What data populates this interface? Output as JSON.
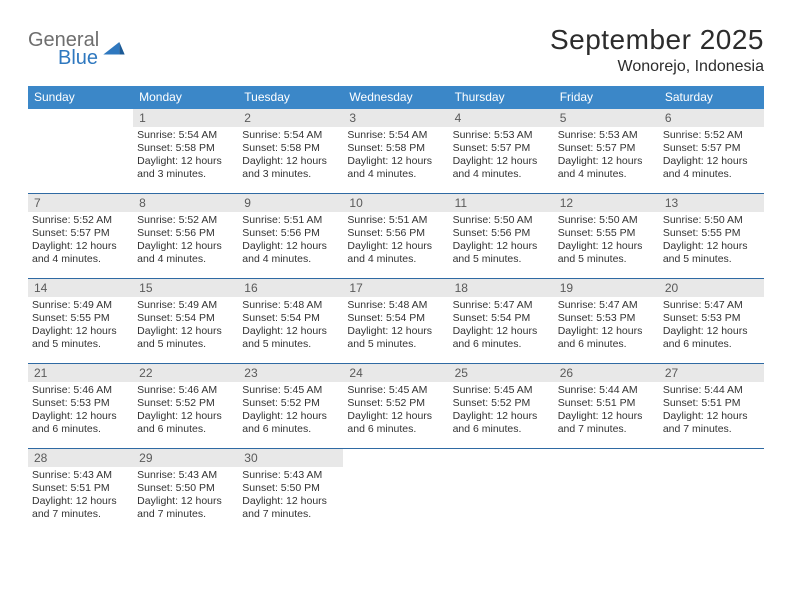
{
  "brand": {
    "part1": "General",
    "part2": "Blue"
  },
  "title": "September 2025",
  "location": "Wonorejo, Indonesia",
  "colors": {
    "header_bg": "#3b87c8",
    "week_divider": "#2f6aa3",
    "daynum_bg": "#e8e8e8",
    "text": "#262626",
    "logo_gray": "#6e6e6e",
    "logo_blue": "#2f78bf"
  },
  "daysOfWeek": [
    "Sunday",
    "Monday",
    "Tuesday",
    "Wednesday",
    "Thursday",
    "Friday",
    "Saturday"
  ],
  "startOffset": 1,
  "days": [
    {
      "n": 1,
      "sunrise": "5:54 AM",
      "sunset": "5:58 PM",
      "daylight": "12 hours and 3 minutes."
    },
    {
      "n": 2,
      "sunrise": "5:54 AM",
      "sunset": "5:58 PM",
      "daylight": "12 hours and 3 minutes."
    },
    {
      "n": 3,
      "sunrise": "5:54 AM",
      "sunset": "5:58 PM",
      "daylight": "12 hours and 4 minutes."
    },
    {
      "n": 4,
      "sunrise": "5:53 AM",
      "sunset": "5:57 PM",
      "daylight": "12 hours and 4 minutes."
    },
    {
      "n": 5,
      "sunrise": "5:53 AM",
      "sunset": "5:57 PM",
      "daylight": "12 hours and 4 minutes."
    },
    {
      "n": 6,
      "sunrise": "5:52 AM",
      "sunset": "5:57 PM",
      "daylight": "12 hours and 4 minutes."
    },
    {
      "n": 7,
      "sunrise": "5:52 AM",
      "sunset": "5:57 PM",
      "daylight": "12 hours and 4 minutes."
    },
    {
      "n": 8,
      "sunrise": "5:52 AM",
      "sunset": "5:56 PM",
      "daylight": "12 hours and 4 minutes."
    },
    {
      "n": 9,
      "sunrise": "5:51 AM",
      "sunset": "5:56 PM",
      "daylight": "12 hours and 4 minutes."
    },
    {
      "n": 10,
      "sunrise": "5:51 AM",
      "sunset": "5:56 PM",
      "daylight": "12 hours and 4 minutes."
    },
    {
      "n": 11,
      "sunrise": "5:50 AM",
      "sunset": "5:56 PM",
      "daylight": "12 hours and 5 minutes."
    },
    {
      "n": 12,
      "sunrise": "5:50 AM",
      "sunset": "5:55 PM",
      "daylight": "12 hours and 5 minutes."
    },
    {
      "n": 13,
      "sunrise": "5:50 AM",
      "sunset": "5:55 PM",
      "daylight": "12 hours and 5 minutes."
    },
    {
      "n": 14,
      "sunrise": "5:49 AM",
      "sunset": "5:55 PM",
      "daylight": "12 hours and 5 minutes."
    },
    {
      "n": 15,
      "sunrise": "5:49 AM",
      "sunset": "5:54 PM",
      "daylight": "12 hours and 5 minutes."
    },
    {
      "n": 16,
      "sunrise": "5:48 AM",
      "sunset": "5:54 PM",
      "daylight": "12 hours and 5 minutes."
    },
    {
      "n": 17,
      "sunrise": "5:48 AM",
      "sunset": "5:54 PM",
      "daylight": "12 hours and 5 minutes."
    },
    {
      "n": 18,
      "sunrise": "5:47 AM",
      "sunset": "5:54 PM",
      "daylight": "12 hours and 6 minutes."
    },
    {
      "n": 19,
      "sunrise": "5:47 AM",
      "sunset": "5:53 PM",
      "daylight": "12 hours and 6 minutes."
    },
    {
      "n": 20,
      "sunrise": "5:47 AM",
      "sunset": "5:53 PM",
      "daylight": "12 hours and 6 minutes."
    },
    {
      "n": 21,
      "sunrise": "5:46 AM",
      "sunset": "5:53 PM",
      "daylight": "12 hours and 6 minutes."
    },
    {
      "n": 22,
      "sunrise": "5:46 AM",
      "sunset": "5:52 PM",
      "daylight": "12 hours and 6 minutes."
    },
    {
      "n": 23,
      "sunrise": "5:45 AM",
      "sunset": "5:52 PM",
      "daylight": "12 hours and 6 minutes."
    },
    {
      "n": 24,
      "sunrise": "5:45 AM",
      "sunset": "5:52 PM",
      "daylight": "12 hours and 6 minutes."
    },
    {
      "n": 25,
      "sunrise": "5:45 AM",
      "sunset": "5:52 PM",
      "daylight": "12 hours and 6 minutes."
    },
    {
      "n": 26,
      "sunrise": "5:44 AM",
      "sunset": "5:51 PM",
      "daylight": "12 hours and 7 minutes."
    },
    {
      "n": 27,
      "sunrise": "5:44 AM",
      "sunset": "5:51 PM",
      "daylight": "12 hours and 7 minutes."
    },
    {
      "n": 28,
      "sunrise": "5:43 AM",
      "sunset": "5:51 PM",
      "daylight": "12 hours and 7 minutes."
    },
    {
      "n": 29,
      "sunrise": "5:43 AM",
      "sunset": "5:50 PM",
      "daylight": "12 hours and 7 minutes."
    },
    {
      "n": 30,
      "sunrise": "5:43 AM",
      "sunset": "5:50 PM",
      "daylight": "12 hours and 7 minutes."
    }
  ],
  "labels": {
    "sunrise": "Sunrise:",
    "sunset": "Sunset:",
    "daylight": "Daylight:"
  }
}
